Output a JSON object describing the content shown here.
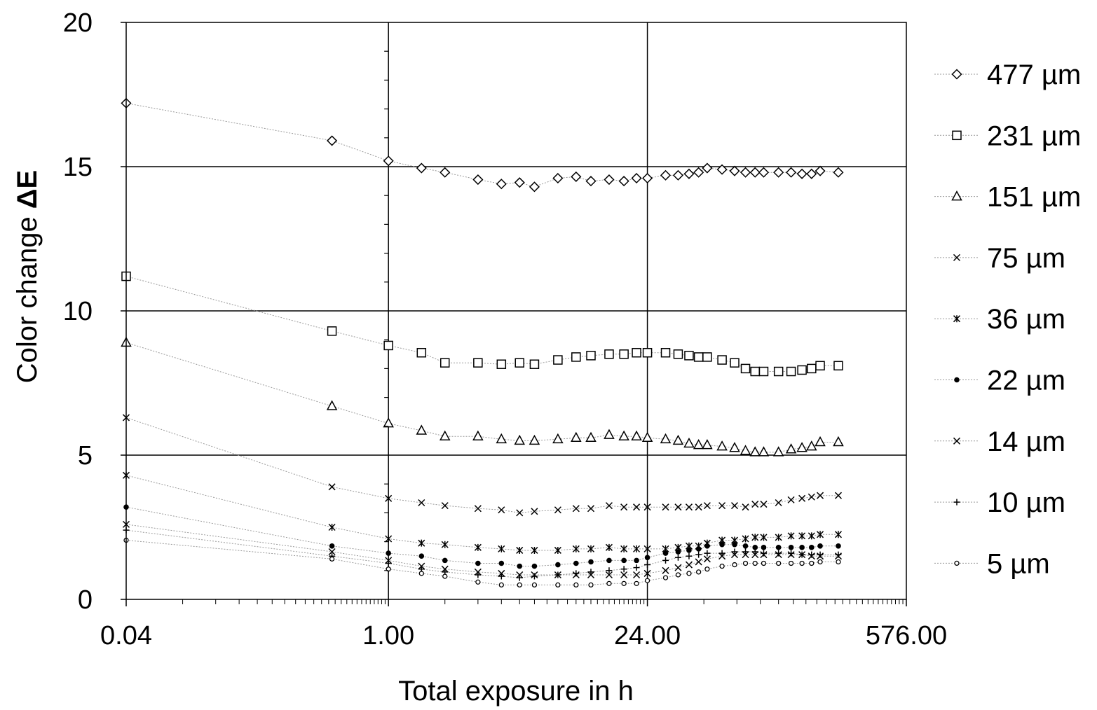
{
  "chart_data": {
    "type": "scatter",
    "xscale": "log",
    "xlim": [
      0.04,
      576
    ],
    "ylim": [
      0,
      20
    ],
    "ylabel_prefix": "Color change ",
    "ylabel_symbol": "ΔE",
    "xlabel": "Total exposure in h",
    "x_tick_labels": [
      "0.04",
      "1.00",
      "24.00",
      "576.00"
    ],
    "x_ticks": [
      0.04,
      1,
      24,
      576
    ],
    "y_ticks": [
      0,
      5,
      10,
      15,
      20
    ],
    "y_tick_labels": [
      "0",
      "5",
      "10",
      "15",
      "20"
    ],
    "grid": true,
    "legend_position": "right",
    "x": [
      0.04,
      0.5,
      1,
      1.5,
      2,
      3,
      4,
      5,
      6,
      8,
      10,
      12,
      15,
      18,
      21,
      24,
      30,
      35,
      40,
      45,
      50,
      60,
      70,
      80,
      90,
      100,
      120,
      140,
      160,
      180,
      200,
      250
    ],
    "series": [
      {
        "name": "477 µm",
        "marker": "diamond",
        "values": [
          17.2,
          15.9,
          15.2,
          14.95,
          14.8,
          14.55,
          14.4,
          14.45,
          14.3,
          14.6,
          14.65,
          14.5,
          14.55,
          14.5,
          14.6,
          14.6,
          14.7,
          14.7,
          14.75,
          14.8,
          14.95,
          14.9,
          14.85,
          14.8,
          14.8,
          14.8,
          14.8,
          14.8,
          14.75,
          14.75,
          14.85,
          14.8
        ]
      },
      {
        "name": "231 µm",
        "marker": "square",
        "values": [
          11.2,
          9.3,
          8.8,
          8.55,
          8.2,
          8.2,
          8.15,
          8.2,
          8.15,
          8.3,
          8.4,
          8.45,
          8.5,
          8.5,
          8.55,
          8.55,
          8.55,
          8.5,
          8.45,
          8.4,
          8.4,
          8.3,
          8.2,
          8.0,
          7.9,
          7.9,
          7.9,
          7.9,
          7.95,
          8.0,
          8.1,
          8.1
        ]
      },
      {
        "name": "151 µm",
        "marker": "triangle",
        "values": [
          8.9,
          6.7,
          6.1,
          5.85,
          5.65,
          5.65,
          5.55,
          5.5,
          5.5,
          5.55,
          5.6,
          5.6,
          5.7,
          5.65,
          5.65,
          5.6,
          5.55,
          5.5,
          5.4,
          5.35,
          5.35,
          5.3,
          5.25,
          5.15,
          5.1,
          5.1,
          5.1,
          5.2,
          5.25,
          5.3,
          5.45,
          5.45
        ]
      },
      {
        "name": "75 µm",
        "marker": "x",
        "values": [
          6.3,
          3.9,
          3.5,
          3.35,
          3.25,
          3.15,
          3.1,
          3.0,
          3.05,
          3.1,
          3.15,
          3.15,
          3.25,
          3.2,
          3.2,
          3.2,
          3.2,
          3.2,
          3.2,
          3.2,
          3.25,
          3.25,
          3.25,
          3.2,
          3.3,
          3.3,
          3.35,
          3.45,
          3.5,
          3.55,
          3.6,
          3.6
        ]
      },
      {
        "name": "36 µm",
        "marker": "star",
        "values": [
          4.3,
          2.5,
          2.1,
          1.95,
          1.9,
          1.8,
          1.75,
          1.7,
          1.7,
          1.7,
          1.75,
          1.75,
          1.8,
          1.75,
          1.75,
          1.75,
          1.75,
          1.8,
          1.85,
          1.85,
          1.95,
          2.05,
          2.05,
          2.1,
          2.15,
          2.15,
          2.15,
          2.2,
          2.2,
          2.2,
          2.25,
          2.25
        ]
      },
      {
        "name": "22 µm",
        "marker": "dot",
        "values": [
          3.2,
          1.85,
          1.6,
          1.5,
          1.35,
          1.25,
          1.25,
          1.15,
          1.15,
          1.2,
          1.25,
          1.3,
          1.35,
          1.35,
          1.35,
          1.45,
          1.6,
          1.65,
          1.7,
          1.75,
          1.85,
          1.9,
          1.9,
          1.85,
          1.8,
          1.8,
          1.8,
          1.8,
          1.8,
          1.8,
          1.85,
          1.85
        ]
      },
      {
        "name": "14 µm",
        "marker": "x",
        "values": [
          2.6,
          1.65,
          1.35,
          1.15,
          1.05,
          0.95,
          0.9,
          0.85,
          0.85,
          0.85,
          0.85,
          0.85,
          0.85,
          0.85,
          0.85,
          0.9,
          1.0,
          1.1,
          1.2,
          1.3,
          1.4,
          1.5,
          1.55,
          1.55,
          1.55,
          1.55,
          1.55,
          1.55,
          1.55,
          1.5,
          1.5,
          1.5
        ]
      },
      {
        "name": "10 µm",
        "marker": "plus",
        "values": [
          2.4,
          1.5,
          1.25,
          1.05,
          0.95,
          0.85,
          0.8,
          0.75,
          0.8,
          0.85,
          0.9,
          0.95,
          1.0,
          1.05,
          1.1,
          1.2,
          1.35,
          1.45,
          1.5,
          1.55,
          1.6,
          1.6,
          1.65,
          1.65,
          1.65,
          1.6,
          1.6,
          1.6,
          1.55,
          1.55,
          1.55,
          1.55
        ]
      },
      {
        "name": "5 µm",
        "marker": "circle",
        "values": [
          2.05,
          1.4,
          1.05,
          0.9,
          0.8,
          0.6,
          0.5,
          0.5,
          0.5,
          0.5,
          0.5,
          0.5,
          0.55,
          0.55,
          0.55,
          0.65,
          0.75,
          0.85,
          0.9,
          0.95,
          1.05,
          1.15,
          1.2,
          1.25,
          1.25,
          1.25,
          1.25,
          1.25,
          1.25,
          1.25,
          1.3,
          1.3
        ]
      }
    ]
  }
}
